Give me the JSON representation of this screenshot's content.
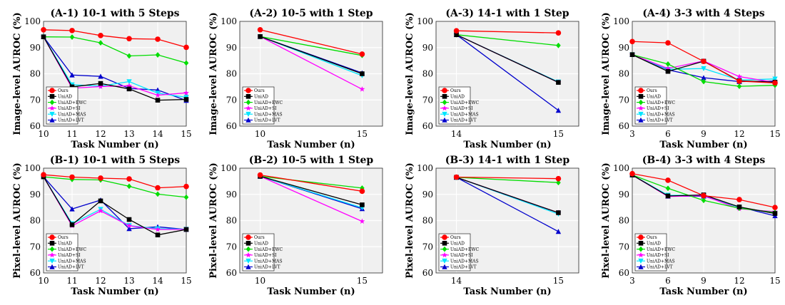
{
  "figure": {
    "background": "#ffffff",
    "plot_background": "#f0f0f0",
    "grid_color": "#ffffff"
  },
  "series_styles": [
    {
      "name": "Ours",
      "color": "#ff0000",
      "marker": "circle"
    },
    {
      "name": "UniAD",
      "color": "#000000",
      "marker": "square"
    },
    {
      "name": "UniAD+EWC",
      "color": "#00dd00",
      "marker": "diamond"
    },
    {
      "name": "UniAD+SI",
      "color": "#ff00ff",
      "marker": "star"
    },
    {
      "name": "UniAD+MAS",
      "color": "#00e5ff",
      "marker": "triangle-down"
    },
    {
      "name": "UniAD+LVT",
      "color": "#0000cc",
      "marker": "triangle-up"
    }
  ],
  "chart_data": [
    {
      "id": "A-1",
      "type": "line",
      "title": "(A-1) 10-1 with 5 Steps",
      "xlabel": "Task Number (n)",
      "ylabel": "Image-level AUROC (%)",
      "x": [
        10,
        11,
        12,
        13,
        14,
        15
      ],
      "xticks": [
        10,
        11,
        12,
        13,
        14,
        15
      ],
      "xlim": [
        10,
        15
      ],
      "ylim": [
        60,
        100
      ],
      "yticks": [
        60,
        70,
        80,
        90,
        100
      ],
      "grid": true,
      "legend": "bottom-left",
      "series": [
        {
          "name": "Ours",
          "values": [
            96.8,
            96.5,
            94.6,
            93.4,
            93.2,
            90.1
          ]
        },
        {
          "name": "UniAD",
          "values": [
            94.1,
            75.0,
            76.3,
            74.2,
            69.9,
            70.2
          ]
        },
        {
          "name": "UniAD+EWC",
          "values": [
            94.1,
            94.0,
            91.8,
            86.8,
            87.2,
            84.1
          ]
        },
        {
          "name": "UniAD+SI",
          "values": [
            94.1,
            74.5,
            75.1,
            75.4,
            71.8,
            72.7
          ]
        },
        {
          "name": "UniAD+MAS",
          "values": [
            94.1,
            75.8,
            75.3,
            77.0,
            72.6,
            71.0
          ]
        },
        {
          "name": "UniAD+LVT",
          "values": [
            94.1,
            79.5,
            79.0,
            74.4,
            73.8,
            69.8
          ]
        }
      ]
    },
    {
      "id": "A-2",
      "type": "line",
      "title": "(A-2) 10-5 with 1 Step",
      "xlabel": "Task Number (n)",
      "ylabel": "Image-level AUROC (%)",
      "x": [
        10,
        15
      ],
      "xticks": [
        10,
        15
      ],
      "xlim": [
        9,
        16
      ],
      "ylim": [
        60,
        100
      ],
      "yticks": [
        60,
        70,
        80,
        90,
        100
      ],
      "grid": true,
      "legend": "bottom-left",
      "series": [
        {
          "name": "Ours",
          "values": [
            96.8,
            87.5
          ]
        },
        {
          "name": "UniAD",
          "values": [
            94.2,
            80.0
          ]
        },
        {
          "name": "UniAD+EWC",
          "values": [
            94.2,
            87.0
          ]
        },
        {
          "name": "UniAD+SI",
          "values": [
            94.2,
            74.1
          ]
        },
        {
          "name": "UniAD+MAS",
          "values": [
            94.2,
            79.3
          ]
        },
        {
          "name": "UniAD+LVT",
          "values": [
            94.2,
            80.3
          ]
        }
      ]
    },
    {
      "id": "A-3",
      "type": "line",
      "title": "(A-3) 14-1 with 1 Step",
      "xlabel": "Task Number (n)",
      "ylabel": "Image-level AUROC (%)",
      "x": [
        14,
        15
      ],
      "xticks": [
        14,
        15
      ],
      "xlim": [
        13.8,
        15.2
      ],
      "ylim": [
        60,
        100
      ],
      "yticks": [
        60,
        70,
        80,
        90,
        100
      ],
      "grid": true,
      "legend": "bottom-left",
      "series": [
        {
          "name": "Ours",
          "values": [
            96.4,
            95.6
          ]
        },
        {
          "name": "UniAD",
          "values": [
            94.9,
            76.7
          ]
        },
        {
          "name": "UniAD+EWC",
          "values": [
            94.9,
            90.8
          ]
        },
        {
          "name": "UniAD+SI",
          "values": [
            94.9,
            76.7
          ]
        },
        {
          "name": "UniAD+MAS",
          "values": [
            94.9,
            76.9
          ]
        },
        {
          "name": "UniAD+LVT",
          "values": [
            94.9,
            66.0
          ]
        }
      ]
    },
    {
      "id": "A-4",
      "type": "line",
      "title": "(A-4) 3-3 with 4 Steps",
      "xlabel": "Task Number (n)",
      "ylabel": "Image-level AUROC (%)",
      "x": [
        3,
        6,
        9,
        12,
        15
      ],
      "xticks": [
        3,
        6,
        9,
        12,
        15
      ],
      "xlim": [
        3,
        15
      ],
      "ylim": [
        60,
        100
      ],
      "yticks": [
        60,
        70,
        80,
        90,
        100
      ],
      "grid": true,
      "legend": "bottom-left",
      "series": [
        {
          "name": "Ours",
          "values": [
            92.3,
            91.8,
            84.7,
            77.2,
            76.5
          ]
        },
        {
          "name": "UniAD",
          "values": [
            87.3,
            80.9,
            84.8,
            77.3,
            76.8
          ]
        },
        {
          "name": "UniAD+EWC",
          "values": [
            87.3,
            83.7,
            77.0,
            75.2,
            75.6
          ]
        },
        {
          "name": "UniAD+SI",
          "values": [
            87.3,
            82.0,
            84.9,
            78.9,
            76.7
          ]
        },
        {
          "name": "UniAD+MAS",
          "values": [
            87.3,
            81.7,
            82.0,
            77.6,
            78.0
          ]
        },
        {
          "name": "UniAD+LVT",
          "values": [
            87.3,
            81.5,
            78.5,
            77.0,
            77.2
          ]
        }
      ]
    },
    {
      "id": "B-1",
      "type": "line",
      "title": "(B-1) 10-1 with 5 Steps",
      "xlabel": "Task Number (n)",
      "ylabel": "Pixel-level AUROC (%)",
      "x": [
        10,
        11,
        12,
        13,
        14,
        15
      ],
      "xticks": [
        10,
        11,
        12,
        13,
        14,
        15
      ],
      "xlim": [
        10,
        15
      ],
      "ylim": [
        60,
        100
      ],
      "yticks": [
        60,
        70,
        80,
        90,
        100
      ],
      "grid": true,
      "legend": "bottom-left",
      "series": [
        {
          "name": "Ours",
          "values": [
            97.5,
            96.6,
            96.2,
            95.9,
            92.5,
            93.0
          ]
        },
        {
          "name": "UniAD",
          "values": [
            96.7,
            78.4,
            87.5,
            80.4,
            74.5,
            76.6
          ]
        },
        {
          "name": "UniAD+EWC",
          "values": [
            96.7,
            95.7,
            95.5,
            93.1,
            90.1,
            88.9
          ]
        },
        {
          "name": "UniAD+SI",
          "values": [
            96.7,
            78.0,
            83.7,
            78.0,
            76.6,
            76.6
          ]
        },
        {
          "name": "UniAD+MAS",
          "values": [
            96.7,
            78.8,
            84.3,
            78.1,
            76.9,
            76.7
          ]
        },
        {
          "name": "UniAD+LVT",
          "values": [
            96.7,
            84.4,
            87.8,
            76.9,
            77.6,
            76.6
          ]
        }
      ]
    },
    {
      "id": "B-2",
      "type": "line",
      "title": "(B-2) 10-5 with 1 Step",
      "xlabel": "Task Number (n)",
      "ylabel": "Pixel-level AUROC (%)",
      "x": [
        10,
        15
      ],
      "xticks": [
        10,
        15
      ],
      "xlim": [
        9,
        16
      ],
      "ylim": [
        60,
        100
      ],
      "yticks": [
        60,
        70,
        80,
        90,
        100
      ],
      "grid": true,
      "legend": "bottom-left",
      "series": [
        {
          "name": "Ours",
          "values": [
            97.4,
            91.2
          ]
        },
        {
          "name": "UniAD",
          "values": [
            96.9,
            86.0
          ]
        },
        {
          "name": "UniAD+EWC",
          "values": [
            96.9,
            92.4
          ]
        },
        {
          "name": "UniAD+SI",
          "values": [
            96.9,
            79.7
          ]
        },
        {
          "name": "UniAD+MAS",
          "values": [
            96.9,
            84.9
          ]
        },
        {
          "name": "UniAD+LVT",
          "values": [
            96.9,
            84.5
          ]
        }
      ]
    },
    {
      "id": "B-3",
      "type": "line",
      "title": "(B-3) 14-1 with 1 Step",
      "xlabel": "Task Number (n)",
      "ylabel": "Pixel-level AUROC (%)",
      "x": [
        14,
        15
      ],
      "xticks": [
        14,
        15
      ],
      "xlim": [
        13.8,
        15.2
      ],
      "ylim": [
        60,
        100
      ],
      "yticks": [
        60,
        70,
        80,
        90,
        100
      ],
      "grid": true,
      "legend": "bottom-left",
      "series": [
        {
          "name": "Ours",
          "values": [
            96.6,
            96.0
          ]
        },
        {
          "name": "UniAD",
          "values": [
            96.5,
            83.0
          ]
        },
        {
          "name": "UniAD+EWC",
          "values": [
            96.5,
            94.5
          ]
        },
        {
          "name": "UniAD+SI",
          "values": [
            96.5,
            83.0
          ]
        },
        {
          "name": "UniAD+MAS",
          "values": [
            96.5,
            82.5
          ]
        },
        {
          "name": "UniAD+LVT",
          "values": [
            96.5,
            75.8
          ]
        }
      ]
    },
    {
      "id": "B-4",
      "type": "line",
      "title": "(B-4) 3-3 with 4 Steps",
      "xlabel": "Task Number (n)",
      "ylabel": "Pixel-level AUROC (%)",
      "x": [
        3,
        6,
        9,
        12,
        15
      ],
      "xticks": [
        3,
        6,
        9,
        12,
        15
      ],
      "xlim": [
        3,
        15
      ],
      "ylim": [
        60,
        100
      ],
      "yticks": [
        60,
        70,
        80,
        90,
        100
      ],
      "grid": true,
      "legend": "bottom-left",
      "series": [
        {
          "name": "Ours",
          "values": [
            97.9,
            95.4,
            89.5,
            88.0,
            85.0
          ]
        },
        {
          "name": "UniAD",
          "values": [
            97.4,
            89.4,
            89.8,
            85.2,
            82.7
          ]
        },
        {
          "name": "UniAD+EWC",
          "values": [
            97.4,
            92.3,
            87.7,
            84.7,
            83.1
          ]
        },
        {
          "name": "UniAD+SI",
          "values": [
            97.4,
            89.2,
            89.5,
            84.5,
            83.4
          ]
        },
        {
          "name": "UniAD+MAS",
          "values": [
            97.4,
            89.7,
            89.6,
            85.0,
            82.8
          ]
        },
        {
          "name": "UniAD+LVT",
          "values": [
            97.4,
            89.3,
            89.3,
            85.2,
            81.8
          ]
        }
      ]
    }
  ]
}
